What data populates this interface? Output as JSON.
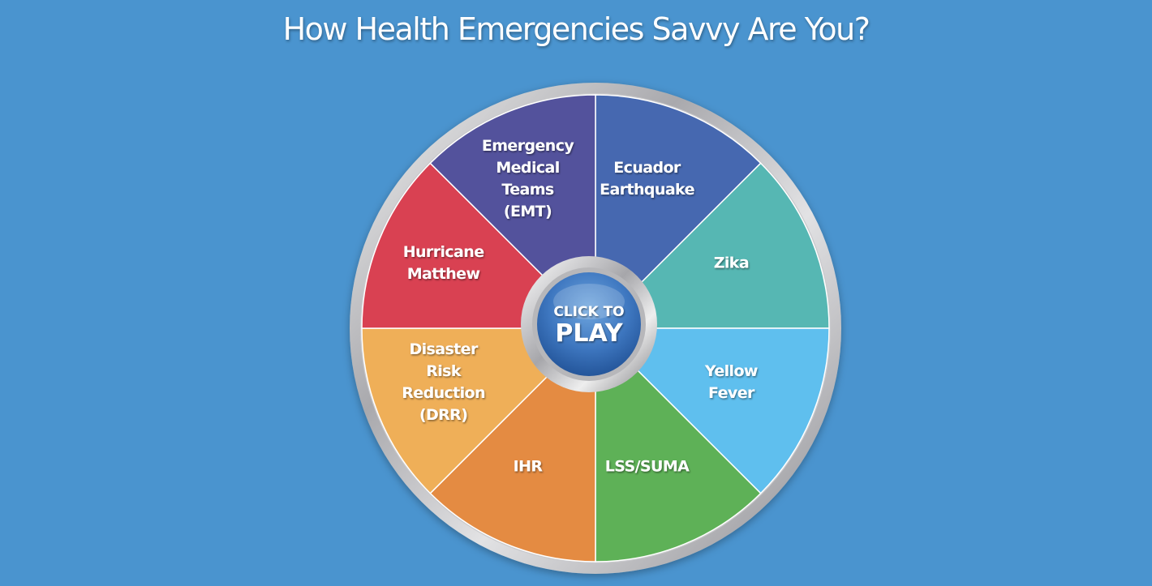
{
  "title": "How Health Emergencies Savvy Are You?",
  "play_button": {
    "line1": "CLICK TO",
    "line2": "PLAY"
  },
  "segments": [
    {
      "id": "ecuador-earthquake",
      "lines": [
        "Ecuador",
        "Earthquake"
      ],
      "color": "#4668b0"
    },
    {
      "id": "zika",
      "lines": [
        "Zika"
      ],
      "color": "#56b7b3"
    },
    {
      "id": "yellow-fever",
      "lines": [
        "Yellow",
        "Fever"
      ],
      "color": "#5fbfee"
    },
    {
      "id": "lss-suma",
      "lines": [
        "LSS/SUMA"
      ],
      "color": "#5eb157"
    },
    {
      "id": "ihr",
      "lines": [
        "IHR"
      ],
      "color": "#e48b42"
    },
    {
      "id": "disaster-risk-reduction",
      "lines": [
        "Disaster",
        "Risk",
        "Reduction",
        "(DRR)"
      ],
      "color": "#efaf58"
    },
    {
      "id": "hurricane-matthew",
      "lines": [
        "Hurricane",
        "Matthew"
      ],
      "color": "#d94152"
    },
    {
      "id": "emergency-medical-teams",
      "lines": [
        "Emergency",
        "Medical",
        "Teams",
        "(EMT)"
      ],
      "color": "#53529c"
    }
  ],
  "colors": {
    "background": "#4a94cf"
  }
}
